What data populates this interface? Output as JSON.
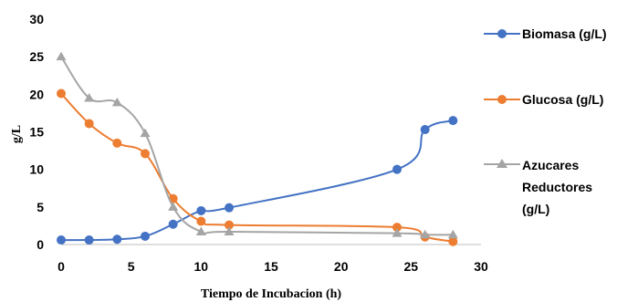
{
  "chart_data": {
    "type": "line",
    "xlabel": "Tiempo de Incubacion (h)",
    "ylabel": "g/L",
    "xlim": [
      0,
      30
    ],
    "ylim": [
      0,
      30
    ],
    "x_ticks": [
      "0",
      "5",
      "10",
      "15",
      "20",
      "25",
      "30"
    ],
    "y_ticks": [
      "0",
      "5",
      "10",
      "15",
      "20",
      "25",
      "30"
    ],
    "grid": false,
    "legend_position": "right",
    "series": [
      {
        "name": "Biomasa (g/L)",
        "color": "#4472C4",
        "marker": "circle",
        "x": [
          0,
          2,
          4,
          6,
          8,
          10,
          12,
          24,
          26,
          28
        ],
        "y": [
          0.6,
          0.6,
          0.7,
          1.1,
          2.7,
          4.5,
          4.9,
          10.0,
          15.3,
          16.5
        ]
      },
      {
        "name": "Glucosa (g/L)",
        "color": "#ED7D31",
        "marker": "circle",
        "x": [
          0,
          2,
          4,
          6,
          8,
          10,
          12,
          24,
          26,
          28
        ],
        "y": [
          20.1,
          16.1,
          13.5,
          12.1,
          6.1,
          3.1,
          2.6,
          2.3,
          1.0,
          0.4
        ]
      },
      {
        "name": "Azucares Reductores (g/L)",
        "legend_lines": [
          "Azucares",
          "Reductores",
          "(g/L)"
        ],
        "color": "#A5A5A5",
        "marker": "triangle",
        "x": [
          0,
          2,
          4,
          6,
          8,
          10,
          12,
          24,
          26,
          28
        ],
        "y": [
          25.0,
          19.5,
          18.9,
          14.8,
          5.0,
          1.7,
          1.7,
          1.5,
          1.3,
          1.3
        ]
      }
    ]
  }
}
